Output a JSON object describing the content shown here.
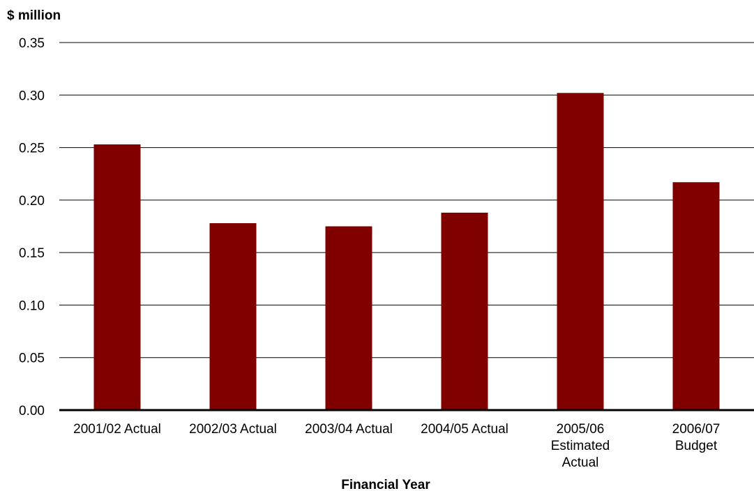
{
  "chart_data": {
    "type": "bar",
    "ylabel": "$ million",
    "xlabel": "Financial Year",
    "categories": [
      [
        "2001/02 Actual"
      ],
      [
        "2002/03 Actual"
      ],
      [
        "2003/04 Actual"
      ],
      [
        "2004/05 Actual"
      ],
      [
        "2005/06",
        "Estimated",
        "Actual"
      ],
      [
        "2006/07",
        "Budget"
      ]
    ],
    "values": [
      0.253,
      0.178,
      0.175,
      0.188,
      0.302,
      0.217
    ],
    "ylim": [
      0,
      0.35
    ],
    "yticks": [
      "0.00",
      "0.05",
      "0.10",
      "0.15",
      "0.20",
      "0.25",
      "0.30",
      "0.35"
    ],
    "bar_color": "#800000",
    "grid": true,
    "legend": "none"
  }
}
